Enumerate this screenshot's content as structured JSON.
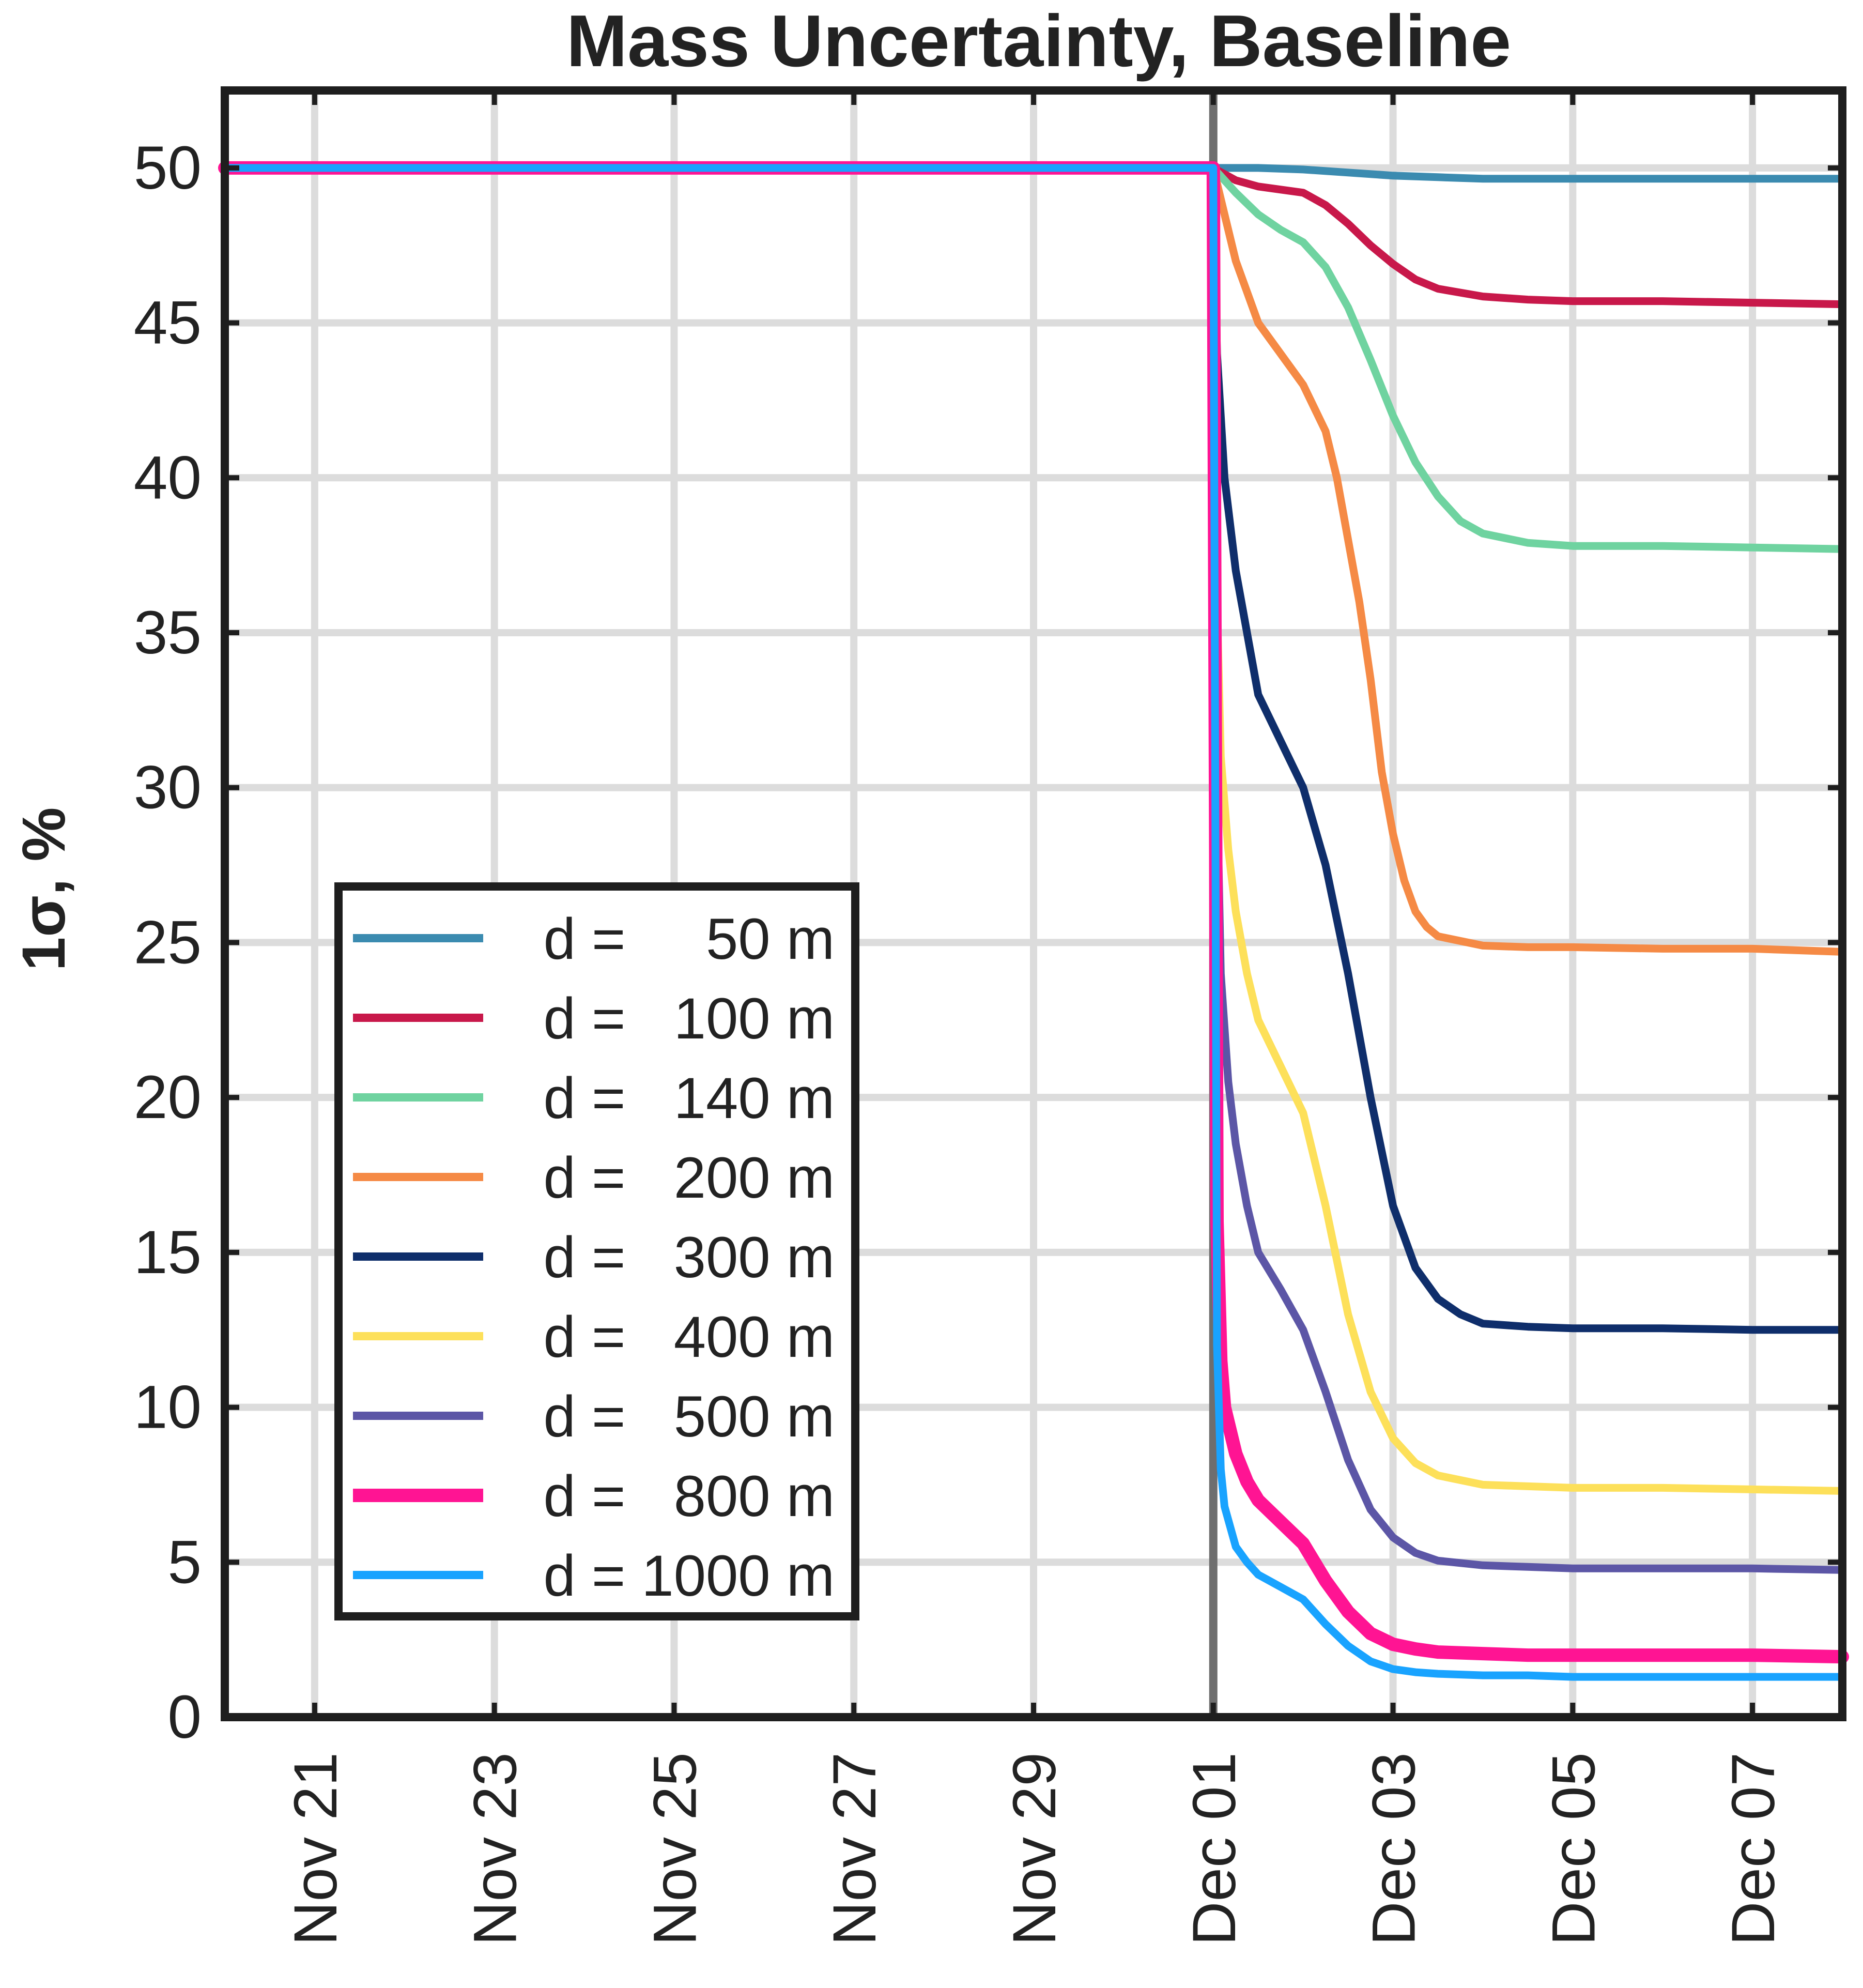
{
  "chart_data": {
    "type": "line",
    "title": "Mass Uncertainty, Baseline",
    "xlabel": "",
    "ylabel": "1σ, %",
    "xlim": [
      "2024-11-20T00:00",
      "2024-12-08T00:00"
    ],
    "ylim": [
      0,
      52.5
    ],
    "grid": true,
    "legend_position": "lower-left",
    "x_ticks": [
      "2024-11-21",
      "2024-11-23",
      "2024-11-25",
      "2024-11-27",
      "2024-11-29",
      "2024-12-01",
      "2024-12-03",
      "2024-12-05",
      "2024-12-07"
    ],
    "x_tick_labels": [
      "Nov 21",
      "Nov 23",
      "Nov 25",
      "Nov 27",
      "Nov 29",
      "Dec 01",
      "Dec 03",
      "Dec 05",
      "Dec 07"
    ],
    "y_ticks": [
      0,
      5,
      10,
      15,
      20,
      25,
      30,
      35,
      40,
      45,
      50
    ],
    "y_tick_labels": [
      "0",
      "5",
      "10",
      "15",
      "20",
      "25",
      "30",
      "35",
      "40",
      "45",
      "50"
    ],
    "event_date": "2024-12-01",
    "event_line_color": "#6e6e6e",
    "series": [
      {
        "name": "d =     50 m",
        "color": "#3b8bb0",
        "x": [
          "2024-11-20",
          "2024-12-01",
          "2024-12-01T12:00",
          "2024-12-02",
          "2024-12-02T12:00",
          "2024-12-03",
          "2024-12-03T12:00",
          "2024-12-04",
          "2024-12-05",
          "2024-12-06",
          "2024-12-07",
          "2024-12-08"
        ],
        "y": [
          50,
          50,
          50,
          49.95,
          49.85,
          49.75,
          49.7,
          49.65,
          49.65,
          49.65,
          49.65,
          49.65
        ]
      },
      {
        "name": "d =   100 m",
        "color": "#c8184a",
        "x": [
          "2024-11-20",
          "2024-12-01",
          "2024-12-01T06:00",
          "2024-12-01T12:00",
          "2024-12-02",
          "2024-12-02T06:00",
          "2024-12-02T12:00",
          "2024-12-02T18:00",
          "2024-12-03",
          "2024-12-03T06:00",
          "2024-12-03T12:00",
          "2024-12-04",
          "2024-12-04T12:00",
          "2024-12-05",
          "2024-12-06",
          "2024-12-07",
          "2024-12-08"
        ],
        "y": [
          50,
          50,
          49.6,
          49.4,
          49.2,
          48.8,
          48.2,
          47.5,
          46.9,
          46.4,
          46.1,
          45.85,
          45.75,
          45.7,
          45.7,
          45.65,
          45.6
        ]
      },
      {
        "name": "d =   140 m",
        "color": "#6fd3a0",
        "x": [
          "2024-11-20",
          "2024-12-01",
          "2024-12-01T06:00",
          "2024-12-01T12:00",
          "2024-12-01T18:00",
          "2024-12-02",
          "2024-12-02T06:00",
          "2024-12-02T12:00",
          "2024-12-02T18:00",
          "2024-12-03",
          "2024-12-03T06:00",
          "2024-12-03T12:00",
          "2024-12-03T18:00",
          "2024-12-04",
          "2024-12-04T12:00",
          "2024-12-05",
          "2024-12-06",
          "2024-12-07",
          "2024-12-08"
        ],
        "y": [
          50,
          50,
          49.2,
          48.5,
          48.0,
          47.6,
          46.8,
          45.5,
          43.8,
          42.0,
          40.5,
          39.4,
          38.6,
          38.2,
          37.9,
          37.8,
          37.8,
          37.75,
          37.7
        ]
      },
      {
        "name": "d =   200 m",
        "color": "#f58a45",
        "x": [
          "2024-11-20",
          "2024-12-01",
          "2024-12-01T03:00",
          "2024-12-01T06:00",
          "2024-12-01T09:00",
          "2024-12-01T12:00",
          "2024-12-01T18:00",
          "2024-12-02",
          "2024-12-02T06:00",
          "2024-12-02T09:00",
          "2024-12-02T12:00",
          "2024-12-02T15:00",
          "2024-12-02T18:00",
          "2024-12-02T21:00",
          "2024-12-03",
          "2024-12-03T03:00",
          "2024-12-03T06:00",
          "2024-12-03T09:00",
          "2024-12-03T12:00",
          "2024-12-04",
          "2024-12-04T12:00",
          "2024-12-05",
          "2024-12-06",
          "2024-12-07",
          "2024-12-08"
        ],
        "y": [
          50,
          50,
          48.5,
          47.0,
          46.0,
          45.0,
          44.0,
          43.0,
          41.5,
          40.0,
          38.0,
          36.0,
          33.5,
          30.5,
          28.5,
          27.0,
          26.0,
          25.5,
          25.2,
          24.9,
          24.85,
          24.85,
          24.8,
          24.8,
          24.7
        ]
      },
      {
        "name": "d =   300 m",
        "color": "#0f2e6b",
        "x": [
          "2024-11-20",
          "2024-12-01",
          "2024-12-01T01:00",
          "2024-12-01T03:00",
          "2024-12-01T06:00",
          "2024-12-01T09:00",
          "2024-12-01T12:00",
          "2024-12-01T18:00",
          "2024-12-02",
          "2024-12-02T06:00",
          "2024-12-02T12:00",
          "2024-12-02T18:00",
          "2024-12-03",
          "2024-12-03T06:00",
          "2024-12-03T12:00",
          "2024-12-03T18:00",
          "2024-12-04",
          "2024-12-04T12:00",
          "2024-12-05",
          "2024-12-06",
          "2024-12-07",
          "2024-12-08"
        ],
        "y": [
          50,
          50,
          44.0,
          40.0,
          37.0,
          35.0,
          33.0,
          31.5,
          30.0,
          27.5,
          24.0,
          20.0,
          16.5,
          14.5,
          13.5,
          13.0,
          12.7,
          12.6,
          12.55,
          12.55,
          12.5,
          12.5
        ]
      },
      {
        "name": "d =   400 m",
        "color": "#fde05a",
        "x": [
          "2024-11-20",
          "2024-12-01",
          "2024-12-01T01:00",
          "2024-12-01T02:00",
          "2024-12-01T04:00",
          "2024-12-01T06:00",
          "2024-12-01T09:00",
          "2024-12-01T12:00",
          "2024-12-01T18:00",
          "2024-12-02",
          "2024-12-02T06:00",
          "2024-12-02T12:00",
          "2024-12-02T18:00",
          "2024-12-03",
          "2024-12-03T06:00",
          "2024-12-03T12:00",
          "2024-12-04",
          "2024-12-04T12:00",
          "2024-12-05",
          "2024-12-06",
          "2024-12-07",
          "2024-12-08"
        ],
        "y": [
          50,
          50,
          36.0,
          31.0,
          28.0,
          26.0,
          24.0,
          22.5,
          21.0,
          19.5,
          16.5,
          13.0,
          10.5,
          9.0,
          8.2,
          7.8,
          7.5,
          7.45,
          7.4,
          7.4,
          7.35,
          7.3
        ]
      },
      {
        "name": "d =   500 m",
        "color": "#5c56a6",
        "x": [
          "2024-11-20",
          "2024-12-01",
          "2024-12-01T01:00",
          "2024-12-01T02:00",
          "2024-12-01T04:00",
          "2024-12-01T06:00",
          "2024-12-01T09:00",
          "2024-12-01T12:00",
          "2024-12-01T18:00",
          "2024-12-02",
          "2024-12-02T06:00",
          "2024-12-02T12:00",
          "2024-12-02T18:00",
          "2024-12-03",
          "2024-12-03T06:00",
          "2024-12-03T12:00",
          "2024-12-04",
          "2024-12-04T12:00",
          "2024-12-05",
          "2024-12-06",
          "2024-12-07",
          "2024-12-08"
        ],
        "y": [
          50,
          50,
          30.0,
          24.0,
          20.5,
          18.5,
          16.5,
          15.0,
          13.8,
          12.5,
          10.5,
          8.3,
          6.7,
          5.8,
          5.3,
          5.05,
          4.9,
          4.85,
          4.8,
          4.8,
          4.8,
          4.75
        ]
      },
      {
        "name": "d =   800 m",
        "color": "#ff1493",
        "x": [
          "2024-11-20",
          "2024-12-01",
          "2024-12-01T01:00",
          "2024-12-01T02:00",
          "2024-12-01T03:00",
          "2024-12-01T06:00",
          "2024-12-01T09:00",
          "2024-12-01T12:00",
          "2024-12-01T18:00",
          "2024-12-02",
          "2024-12-02T06:00",
          "2024-12-02T12:00",
          "2024-12-02T18:00",
          "2024-12-03",
          "2024-12-03T06:00",
          "2024-12-03T12:00",
          "2024-12-04",
          "2024-12-04T12:00",
          "2024-12-05",
          "2024-12-06",
          "2024-12-07",
          "2024-12-08"
        ],
        "y": [
          50,
          50,
          16.0,
          11.5,
          10.0,
          8.5,
          7.6,
          7.0,
          6.3,
          5.6,
          4.4,
          3.4,
          2.7,
          2.35,
          2.2,
          2.1,
          2.05,
          2.0,
          2.0,
          2.0,
          2.0,
          1.95
        ]
      },
      {
        "name": "d = 1000 m",
        "color": "#19a3ff",
        "x": [
          "2024-11-20",
          "2024-12-01",
          "2024-12-01T01:00",
          "2024-12-01T02:00",
          "2024-12-01T03:00",
          "2024-12-01T06:00",
          "2024-12-01T09:00",
          "2024-12-01T12:00",
          "2024-12-01T18:00",
          "2024-12-02",
          "2024-12-02T06:00",
          "2024-12-02T12:00",
          "2024-12-02T18:00",
          "2024-12-03",
          "2024-12-03T06:00",
          "2024-12-03T12:00",
          "2024-12-04",
          "2024-12-04T12:00",
          "2024-12-05",
          "2024-12-06",
          "2024-12-07",
          "2024-12-08"
        ],
        "y": [
          50,
          50,
          12.0,
          8.0,
          6.8,
          5.5,
          5.0,
          4.6,
          4.2,
          3.8,
          3.0,
          2.3,
          1.8,
          1.55,
          1.45,
          1.4,
          1.35,
          1.35,
          1.3,
          1.3,
          1.3,
          1.3
        ]
      }
    ]
  }
}
